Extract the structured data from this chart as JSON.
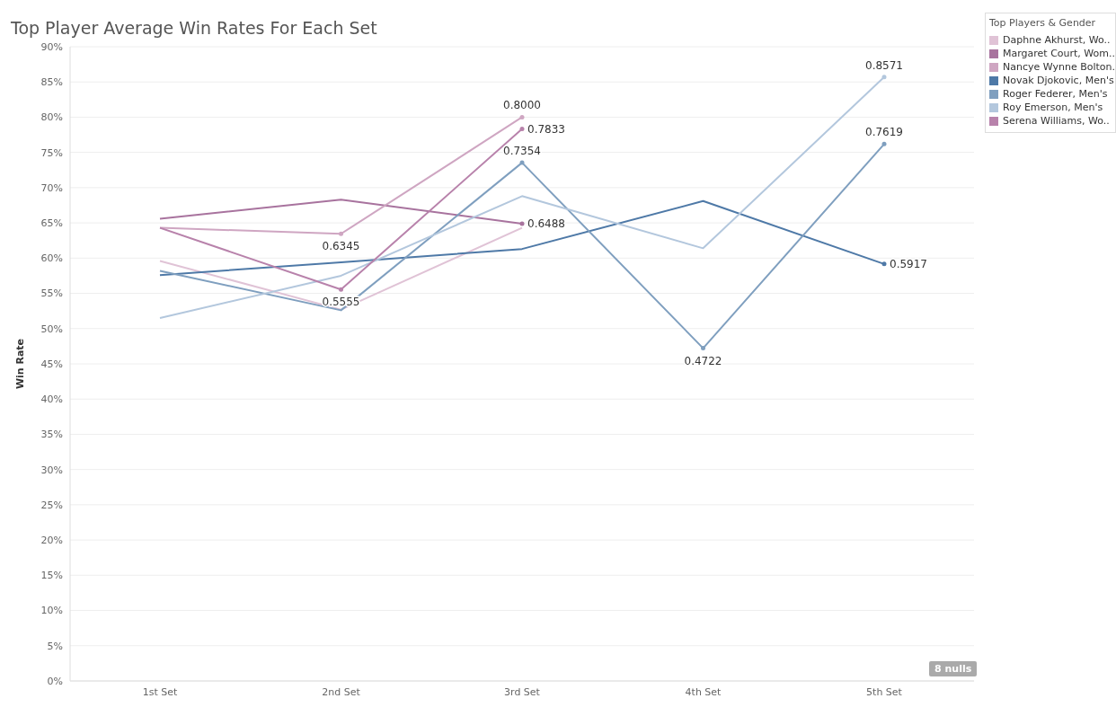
{
  "chart_data": {
    "type": "line",
    "title": "Top Player Average Win Rates For Each Set",
    "ylabel": "Win Rate",
    "legend_title": "Top Players & Gender",
    "categories": [
      "1st Set",
      "2nd Set",
      "3rd Set",
      "4th Set",
      "5th Set"
    ],
    "series": [
      {
        "name": "Daphne Akhurst, Wo..",
        "color": "#e0c3d6",
        "values": [
          0.596,
          0.527,
          0.643,
          null,
          null
        ],
        "value_labels": [
          null,
          null,
          null,
          null,
          null
        ]
      },
      {
        "name": "Margaret Court, Wom..",
        "color": "#a8739e",
        "values": [
          0.656,
          0.683,
          0.6488,
          null,
          null
        ],
        "value_labels": [
          null,
          null,
          "0.6488",
          null,
          null
        ]
      },
      {
        "name": "Nancye Wynne Bolton..",
        "color": "#cfa6c2",
        "values": [
          0.643,
          0.6345,
          0.8,
          null,
          null
        ],
        "value_labels": [
          null,
          "0.6345",
          "0.8000",
          null,
          null
        ]
      },
      {
        "name": "Novak Djokovic, Men's",
        "color": "#4e79a7",
        "values": [
          0.576,
          0.594,
          0.613,
          0.681,
          0.5917
        ],
        "value_labels": [
          null,
          null,
          null,
          null,
          "0.5917"
        ]
      },
      {
        "name": "Roger Federer, Men's",
        "color": "#7f9fbf",
        "values": [
          0.582,
          0.526,
          0.7354,
          0.4722,
          0.7619
        ],
        "value_labels": [
          null,
          null,
          "0.7354",
          "0.4722",
          "0.7619"
        ]
      },
      {
        "name": "Roy Emerson, Men's",
        "color": "#b3c7dd",
        "values": [
          0.515,
          0.575,
          0.688,
          0.614,
          0.8571
        ],
        "value_labels": [
          null,
          null,
          null,
          null,
          "0.8571"
        ]
      },
      {
        "name": "Serena Williams, Wo..",
        "color": "#b882ab",
        "values": [
          0.643,
          0.5555,
          0.7833,
          null,
          null
        ],
        "value_labels": [
          null,
          "0.5555",
          "0.7833",
          null,
          null
        ]
      }
    ],
    "ylim": [
      0,
      0.9
    ],
    "yticks": [
      {
        "value": 0,
        "label": "0%"
      },
      {
        "value": 0.05,
        "label": "5%"
      },
      {
        "value": 0.1,
        "label": "10%"
      },
      {
        "value": 0.15,
        "label": "15%"
      },
      {
        "value": 0.2,
        "label": "20%"
      },
      {
        "value": 0.25,
        "label": "25%"
      },
      {
        "value": 0.3,
        "label": "30%"
      },
      {
        "value": 0.35,
        "label": "35%"
      },
      {
        "value": 0.4,
        "label": "40%"
      },
      {
        "value": 0.45,
        "label": "45%"
      },
      {
        "value": 0.5,
        "label": "50%"
      },
      {
        "value": 0.55,
        "label": "55%"
      },
      {
        "value": 0.6,
        "label": "60%"
      },
      {
        "value": 0.65,
        "label": "65%"
      },
      {
        "value": 0.7,
        "label": "70%"
      },
      {
        "value": 0.75,
        "label": "75%"
      },
      {
        "value": 0.8,
        "label": "80%"
      },
      {
        "value": 0.85,
        "label": "85%"
      },
      {
        "value": 0.9,
        "label": "90%"
      }
    ],
    "grid": "y",
    "legend": "top right",
    "annotations": [
      "8 nulls"
    ]
  }
}
